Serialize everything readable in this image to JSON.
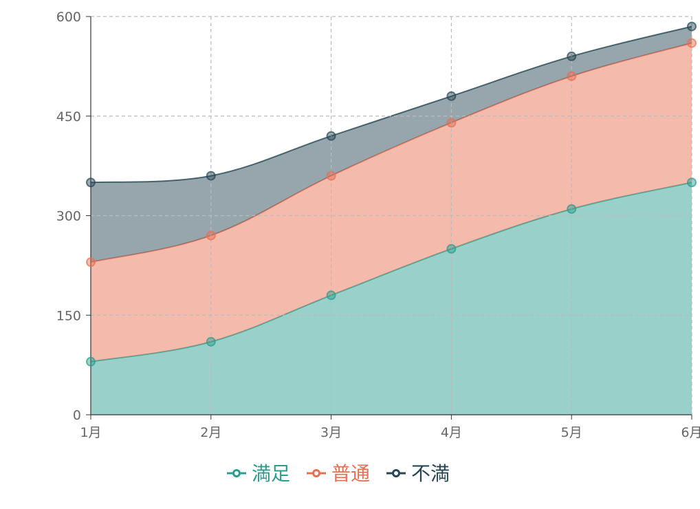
{
  "chart_data": {
    "type": "area",
    "stacked": true,
    "smooth": true,
    "categories": [
      "1月",
      "2月",
      "3月",
      "4月",
      "5月",
      "6月"
    ],
    "ylim": [
      0,
      600
    ],
    "yticks": [
      0,
      150,
      300,
      450,
      600
    ],
    "grid": true,
    "legend_position": "bottom",
    "series": [
      {
        "name": "満足",
        "color": "#2a9d8f",
        "values": [
          80,
          110,
          180,
          250,
          310,
          350
        ]
      },
      {
        "name": "普通",
        "color": "#e76f51",
        "values": [
          150,
          160,
          180,
          190,
          200,
          210
        ]
      },
      {
        "name": "不満",
        "color": "#264653",
        "values": [
          120,
          90,
          60,
          40,
          30,
          25
        ]
      }
    ]
  }
}
